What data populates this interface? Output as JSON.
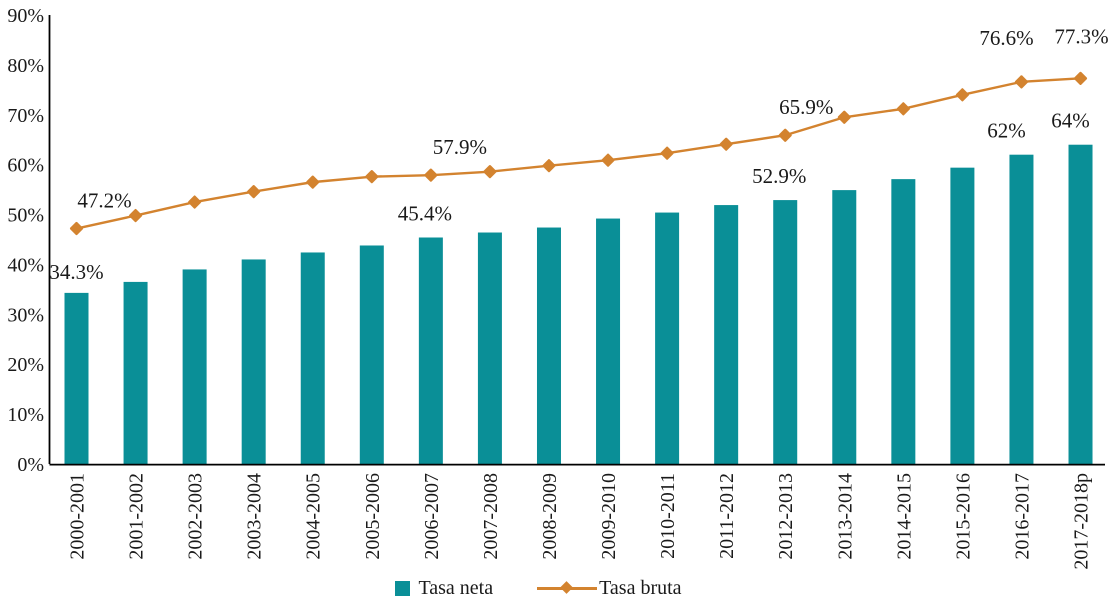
{
  "chart_data": {
    "type": "combo_bar_line",
    "title": "",
    "categories": [
      "2000-2001",
      "2001-2002",
      "2002-2003",
      "2003-2004",
      "2004-2005",
      "2005-2006",
      "2006-2007",
      "2007-2008",
      "2008-2009",
      "2009-2010",
      "2010-2011",
      "2011-2012",
      "2012-2013",
      "2013-2014",
      "2014-2015",
      "2015-2016",
      "2016-2017",
      "2017-2018p"
    ],
    "series": [
      {
        "name": "Tasa neta",
        "type": "bar",
        "color": "#0A8F97",
        "values": [
          34.3,
          36.5,
          39.0,
          41.0,
          42.4,
          43.8,
          45.4,
          46.4,
          47.4,
          49.2,
          50.4,
          51.9,
          52.9,
          54.9,
          57.1,
          59.4,
          62.0,
          64.0
        ],
        "point_labels": [
          {
            "index": 0,
            "text": "34.3%",
            "dx": 0,
            "dy": -14
          },
          {
            "index": 6,
            "text": "45.4%",
            "dx": -6,
            "dy": -17
          },
          {
            "index": 12,
            "text": "52.9%",
            "dx": -6,
            "dy": -17
          },
          {
            "index": 16,
            "text": "62%",
            "dx": -15,
            "dy": -17
          },
          {
            "index": 17,
            "text": "64%",
            "dx": -10,
            "dy": -17
          }
        ]
      },
      {
        "name": "Tasa bruta",
        "type": "line",
        "color": "#D3832F",
        "marker": "diamond",
        "values": [
          47.2,
          49.8,
          52.5,
          54.6,
          56.5,
          57.6,
          57.9,
          58.6,
          59.8,
          60.9,
          62.3,
          64.1,
          65.9,
          69.5,
          71.2,
          74.0,
          76.6,
          77.3
        ],
        "point_labels": [
          {
            "index": 0,
            "text": "47.2%",
            "dx": 28,
            "dy": -21
          },
          {
            "index": 6,
            "text": "57.9%",
            "dx": 29,
            "dy": -21
          },
          {
            "index": 12,
            "text": "65.9%",
            "dx": 21,
            "dy": -21
          },
          {
            "index": 16,
            "text": "76.6%",
            "dx": -15,
            "dy": -37
          },
          {
            "index": 17,
            "text": "77.3%",
            "dx": 1,
            "dy": -35
          }
        ]
      }
    ],
    "xlabel": "",
    "ylabel": "",
    "ylim": [
      0,
      90
    ],
    "ytick_labels": [
      "0%",
      "10%",
      "20%",
      "30%",
      "40%",
      "50%",
      "60%",
      "70%",
      "80%",
      "90%"
    ],
    "grid": false,
    "legend_position": "bottom-center",
    "axis_color": "#000000",
    "text_color": "#1a1a1a",
    "background": "#ffffff"
  }
}
